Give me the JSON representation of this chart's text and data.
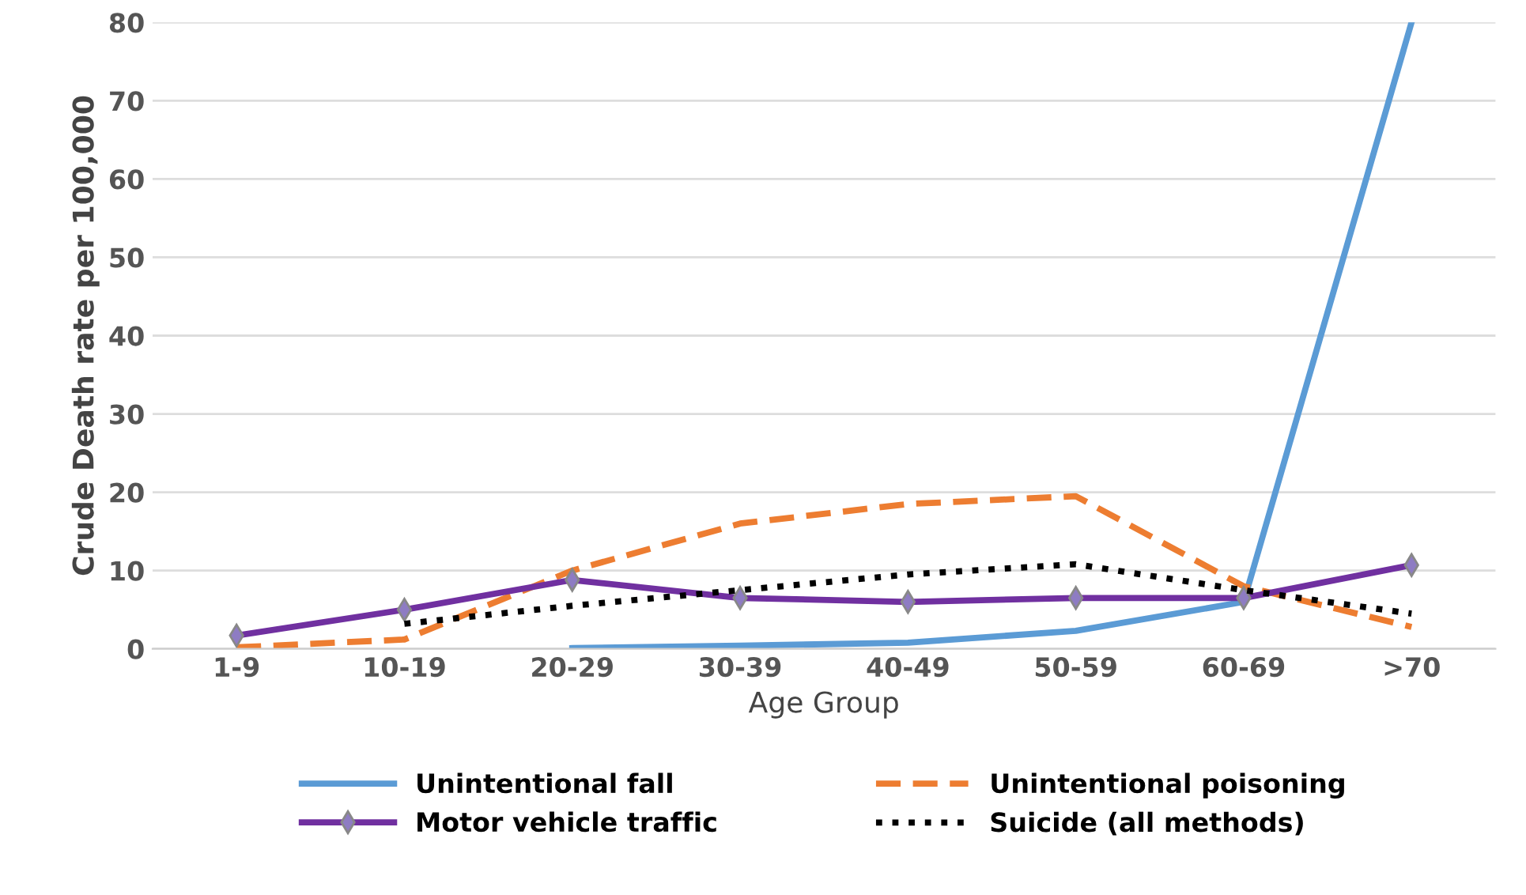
{
  "chart_data": {
    "type": "line",
    "xlabel": "Age Group",
    "ylabel": "Crude Death rate per 100,000",
    "categories": [
      "1-9",
      "10-19",
      "20-29",
      "30-39",
      "40-49",
      "50-59",
      "60-69",
      ">70"
    ],
    "series": [
      {
        "name": "Unintentional fall",
        "color": "#5b9bd5",
        "line_style": "solid",
        "marker": "none",
        "values": [
          null,
          null,
          0.1,
          0.4,
          0.8,
          2.3,
          6,
          80
        ]
      },
      {
        "name": "Unintentional poisoning",
        "color": "#ed7d31",
        "line_style": "dashed",
        "marker": "none",
        "values": [
          0.2,
          1.2,
          10,
          16,
          18.5,
          19.5,
          8,
          2.8
        ]
      },
      {
        "name": "Motor vehicle traffic",
        "color": "#7030a0",
        "line_style": "solid",
        "marker": "diamond",
        "values": [
          1.7,
          5,
          8.8,
          6.5,
          6,
          6.5,
          6.5,
          10.7
        ]
      },
      {
        "name": "Suicide (all methods)",
        "color": "#000000",
        "line_style": "dotted",
        "marker": "none",
        "values": [
          null,
          3.2,
          5.5,
          7.5,
          9.5,
          10.8,
          7.5,
          4.5
        ]
      }
    ],
    "ylim": [
      0,
      80
    ],
    "yticks": [
      0,
      10,
      20,
      30,
      40,
      50,
      60,
      70,
      80
    ],
    "grid": "y",
    "legend": "bottom"
  }
}
